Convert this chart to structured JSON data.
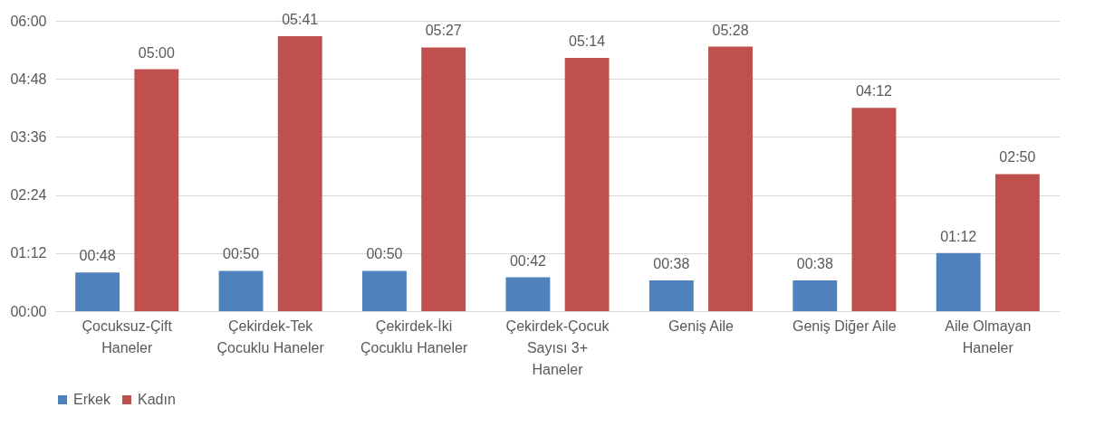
{
  "chart_data": {
    "type": "bar",
    "categories": [
      "Çocuksuz-Çift Haneler",
      "Çekirdek-Tek Çocuklu Haneler",
      "Çekirdek-İki Çocuklu Haneler",
      "Çekirdek-Çocuk Sayısı 3+ Haneler",
      "Geniş Aile",
      "Geniş Diğer Aile",
      "Aile Olmayan Haneler"
    ],
    "series": [
      {
        "name": "Erkek",
        "color": "#4f81bd",
        "values": [
          48,
          50,
          50,
          42,
          38,
          38,
          72
        ],
        "value_labels": [
          "00:48",
          "00:50",
          "00:50",
          "00:42",
          "00:38",
          "00:38",
          "01:12"
        ]
      },
      {
        "name": "Kadın",
        "color": "#c0504d",
        "values": [
          300,
          341,
          327,
          314,
          328,
          252,
          170
        ],
        "value_labels": [
          "05:00",
          "05:41",
          "05:27",
          "05:14",
          "05:28",
          "04:12",
          "02:50"
        ]
      }
    ],
    "ylim": [
      0,
      360
    ],
    "yticks": [
      {
        "value": 0,
        "label": "00:00"
      },
      {
        "value": 72,
        "label": "01:12"
      },
      {
        "value": 144,
        "label": "02:24"
      },
      {
        "value": 216,
        "label": "03:36"
      },
      {
        "value": 288,
        "label": "04:48"
      },
      {
        "value": 360,
        "label": "06:00"
      }
    ],
    "grid": "y",
    "legend": "bottom"
  }
}
